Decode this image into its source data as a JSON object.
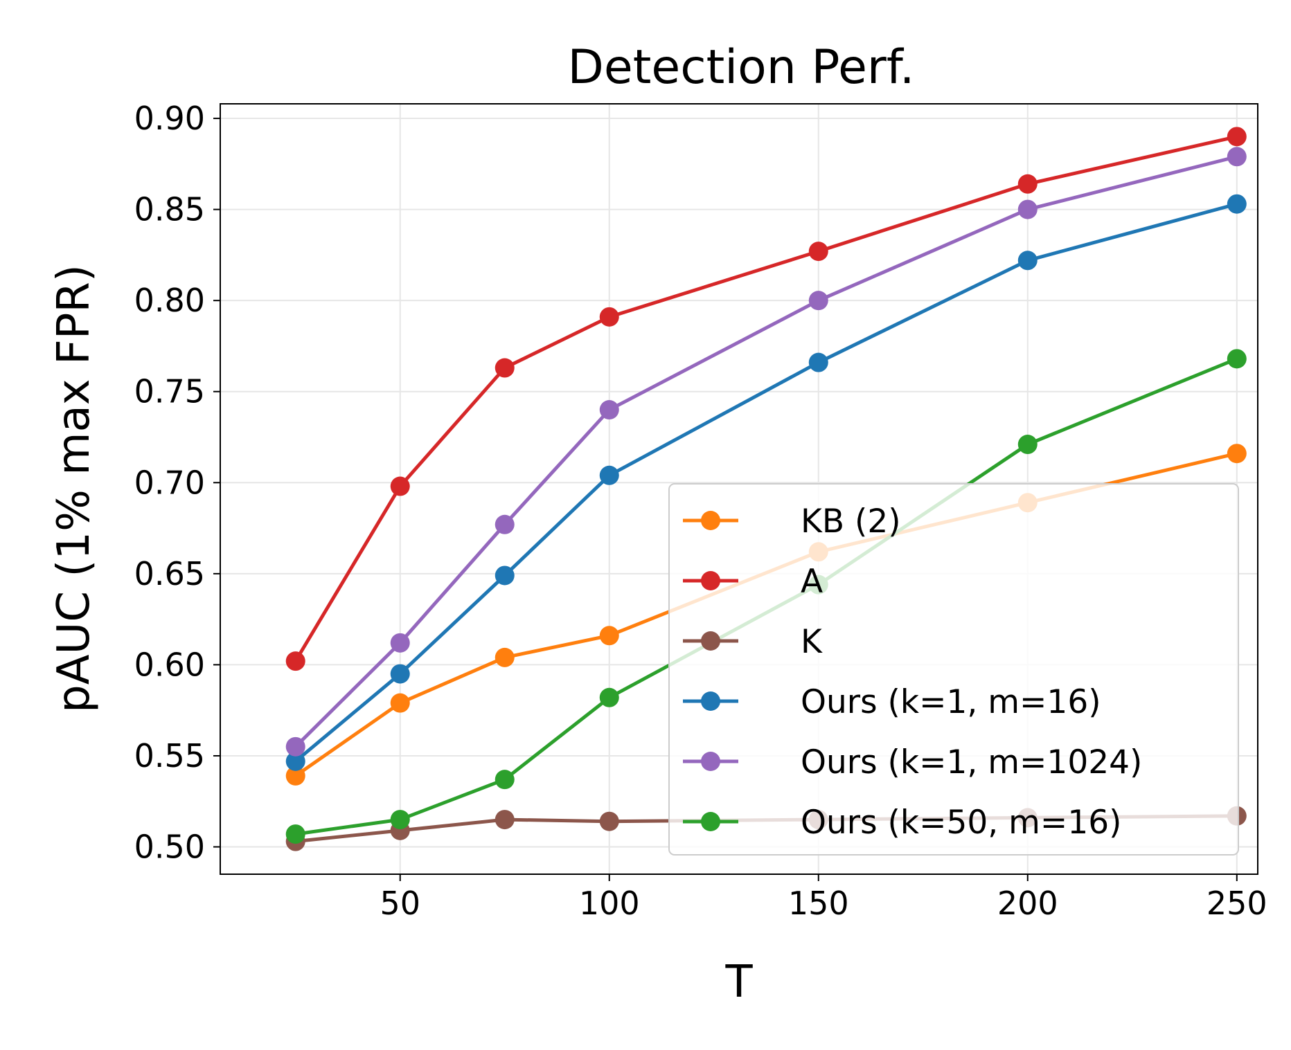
{
  "chart_data": {
    "type": "line",
    "title": "Detection Perf.",
    "xlabel": "T",
    "ylabel": "pAUC (1% max FPR)",
    "x": [
      25,
      50,
      75,
      100,
      150,
      200,
      250
    ],
    "xticks": [
      50,
      100,
      150,
      200,
      250
    ],
    "xtick_labels": [
      "50",
      "100",
      "150",
      "200",
      "250"
    ],
    "xlim": [
      7,
      255
    ],
    "yticks": [
      0.5,
      0.55,
      0.6,
      0.65,
      0.7,
      0.75,
      0.8,
      0.85,
      0.9
    ],
    "ytick_labels": [
      "0.50",
      "0.55",
      "0.60",
      "0.65",
      "0.70",
      "0.75",
      "0.80",
      "0.85",
      "0.90"
    ],
    "ylim": [
      0.485,
      0.908
    ],
    "grid": true,
    "legend_position": "lower-right",
    "series": [
      {
        "name": "KB (2)",
        "color": "#ff7f0e",
        "values": [
          0.539,
          0.579,
          0.604,
          0.616,
          0.662,
          0.689,
          0.716
        ]
      },
      {
        "name": "A",
        "color": "#d62728",
        "values": [
          0.602,
          0.698,
          0.763,
          0.791,
          0.827,
          0.864,
          0.89
        ]
      },
      {
        "name": "K",
        "color": "#8c564b",
        "values": [
          0.503,
          0.509,
          0.515,
          0.514,
          0.515,
          0.516,
          0.517
        ]
      },
      {
        "name": "Ours (k=1, m=16)",
        "color": "#1f77b4",
        "values": [
          0.547,
          0.595,
          0.649,
          0.704,
          0.766,
          0.822,
          0.853
        ]
      },
      {
        "name": "Ours (k=1, m=1024)",
        "color": "#9467bd",
        "values": [
          0.555,
          0.612,
          0.677,
          0.74,
          0.8,
          0.85,
          0.879
        ]
      },
      {
        "name": "Ours (k=50, m=16)",
        "color": "#2ca02c",
        "values": [
          0.507,
          0.515,
          0.537,
          0.582,
          0.644,
          0.721,
          0.768
        ]
      }
    ]
  }
}
